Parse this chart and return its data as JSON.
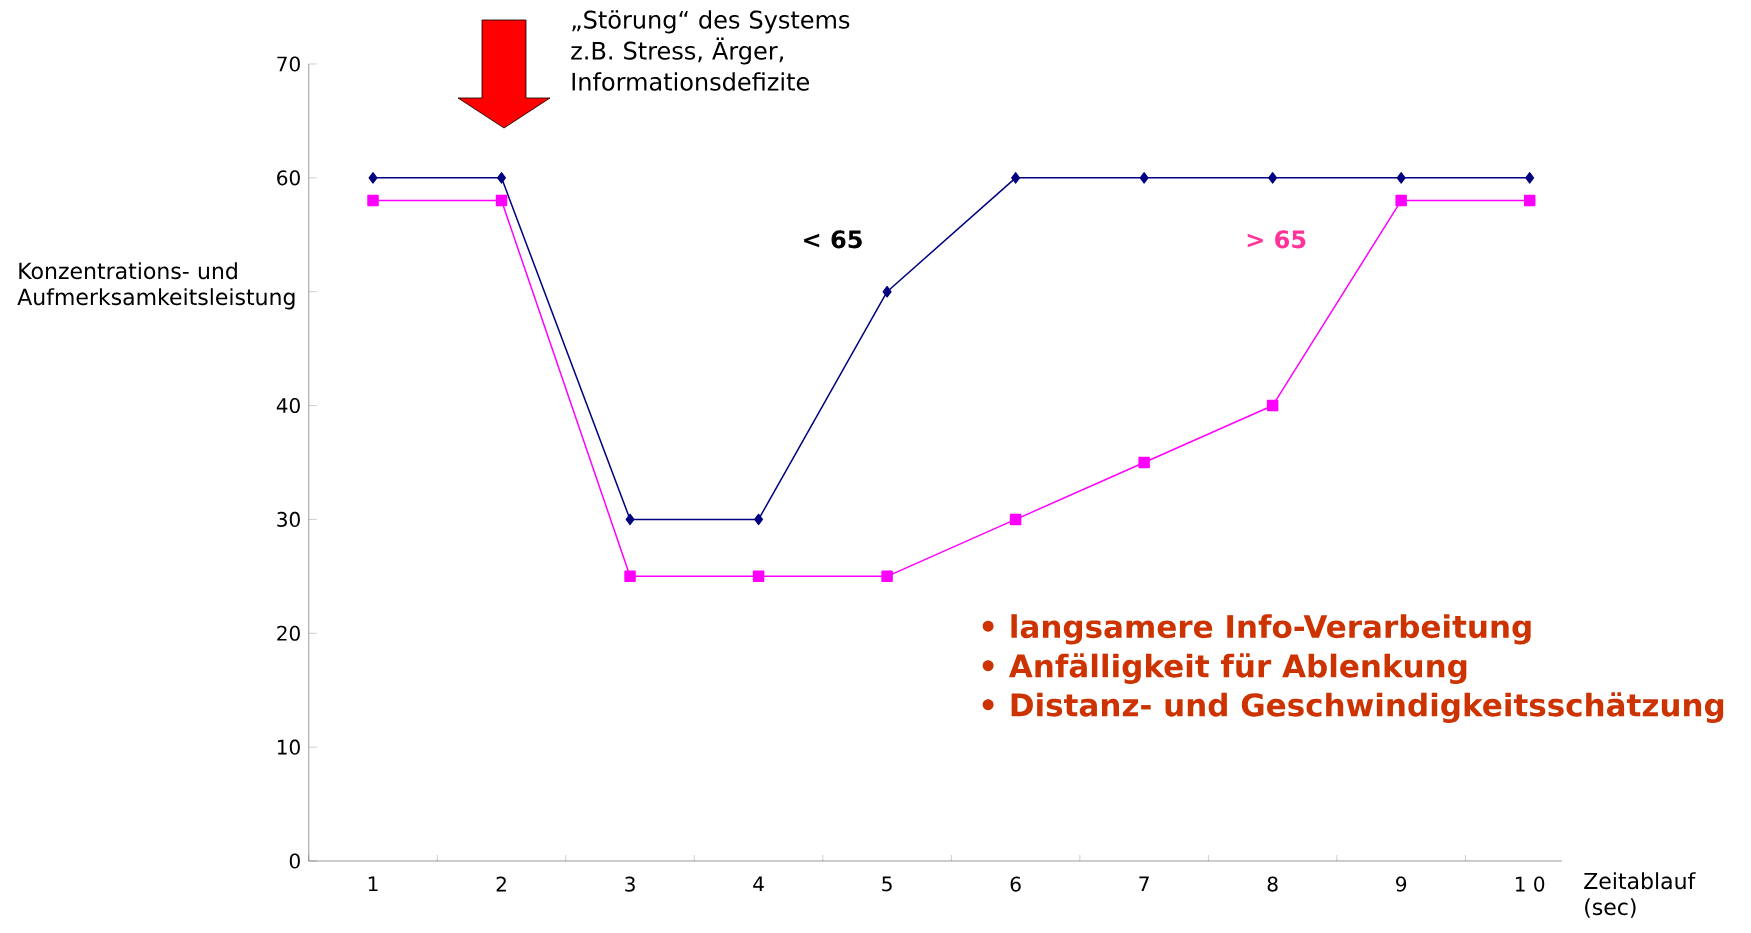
{
  "chart_data": {
    "type": "line",
    "ylabel": "Konzentrations- und Aufmerksamkeitsleistung",
    "xlabel": "Zeitablauf (sec)",
    "categories": [
      "1",
      "2",
      "3",
      "4",
      "5",
      "6",
      "7",
      "8",
      "9",
      "1 0"
    ],
    "series": [
      {
        "name": "< 65",
        "color": "#000080",
        "marker": "diamond",
        "values": [
          60,
          60,
          30,
          30,
          50,
          60,
          60,
          60,
          60,
          60
        ]
      },
      {
        "name": "> 65",
        "color": "#ff00ff",
        "marker": "square",
        "values": [
          58,
          58,
          25,
          25,
          25,
          30,
          35,
          40,
          58,
          58
        ]
      }
    ],
    "ylim": [
      0,
      70
    ],
    "yticks": [
      0,
      10,
      20,
      30,
      40,
      {
        "value": 50,
        "label": null
      },
      60,
      70
    ],
    "annotations": [
      "„Störung“ des Systems z.B. Stress, Ärger, Informationsdefizite",
      "• langsamere Info-Verarbeitung",
      "• Anfälligkeit für Ablenkung",
      "• Distanz- und Geschwindigkeitsschätzung"
    ],
    "line_style": "solid"
  }
}
